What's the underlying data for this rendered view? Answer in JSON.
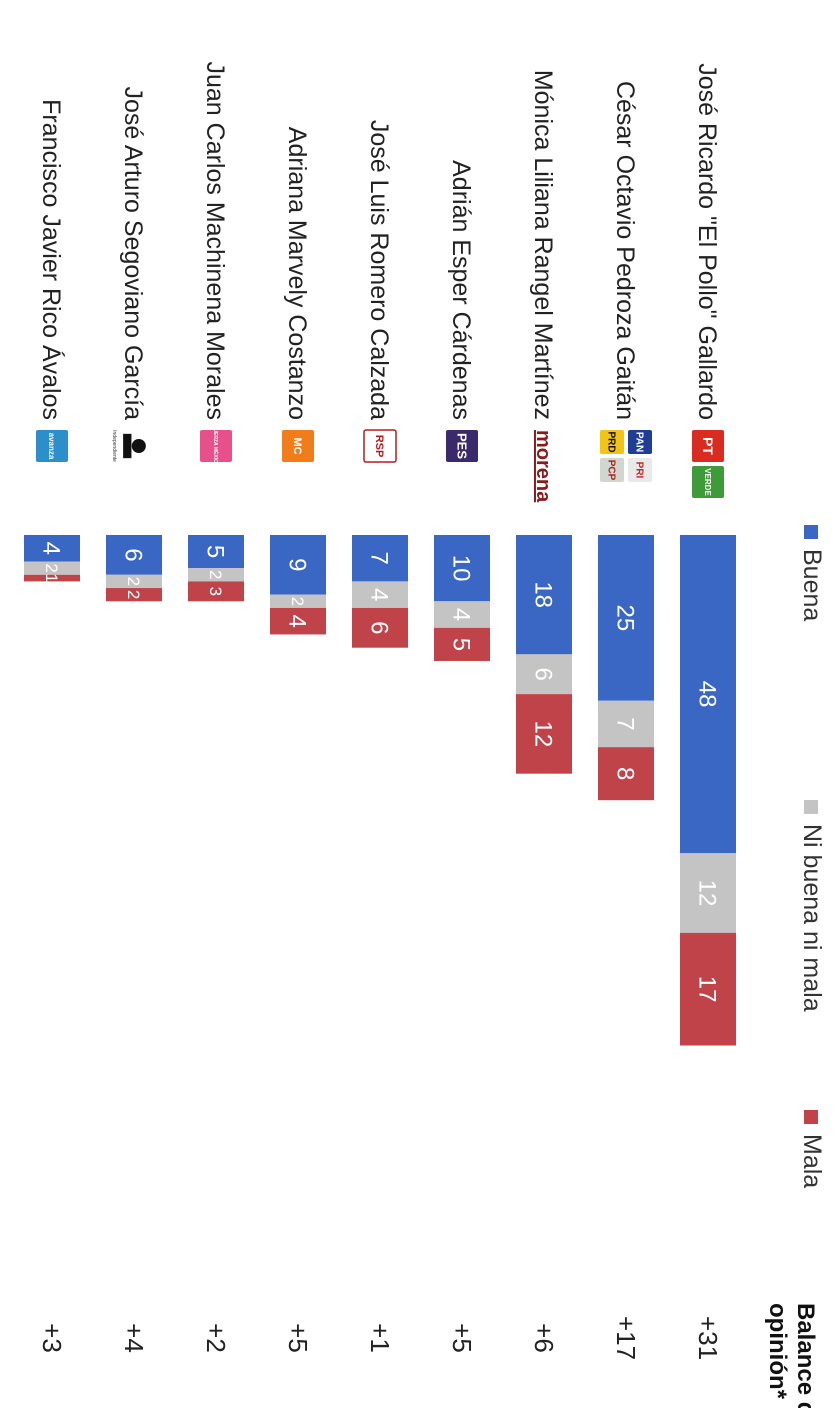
{
  "chart_data": {
    "type": "bar",
    "stacked": true,
    "orientation": "horizontal",
    "legend_position": "top",
    "balance_header": "Balance de opinión*",
    "series": [
      {
        "name": "Buena",
        "color": "#3a66c4"
      },
      {
        "name": "Ni buena ni mala",
        "color": "#c4c4c4"
      },
      {
        "name": "Mala",
        "color": "#c0434a"
      }
    ],
    "rows": [
      {
        "candidate": "José Ricardo \"El Pollo\" Gallardo",
        "parties": [
          "PT",
          "VERDE"
        ],
        "buena": 48,
        "ni": 12,
        "mala": 17,
        "balance": "+31"
      },
      {
        "candidate": "César Octavio Pedroza Gaitán",
        "parties": [
          "PAN",
          "PRI",
          "PRD",
          "PCP"
        ],
        "buena": 25,
        "ni": 7,
        "mala": 8,
        "balance": "+17"
      },
      {
        "candidate": "Mónica Liliana Rangel Martínez",
        "parties": [
          "morena"
        ],
        "buena": 18,
        "ni": 6,
        "mala": 12,
        "balance": "+6"
      },
      {
        "candidate": "Adrián Esper Cárdenas",
        "parties": [
          "PES"
        ],
        "buena": 10,
        "ni": 4,
        "mala": 5,
        "balance": "+5"
      },
      {
        "candidate": "José Luis Romero Calzada",
        "parties": [
          "RSP"
        ],
        "buena": 7,
        "ni": 4,
        "mala": 6,
        "balance": "+1"
      },
      {
        "candidate": "Adriana Marvely Costanzo",
        "parties": [
          "MC"
        ],
        "buena": 9,
        "ni": 2,
        "mala": 4,
        "balance": "+5"
      },
      {
        "candidate": "Juan Carlos Machinena Morales",
        "parties": [
          "FUERZA MÉXICO"
        ],
        "buena": 5,
        "ni": 2,
        "mala": 3,
        "balance": "+2"
      },
      {
        "candidate": "José Arturo Segoviano García",
        "parties": [
          "Independiente"
        ],
        "buena": 6,
        "ni": 2,
        "mala": 2,
        "balance": "+4"
      },
      {
        "candidate": "Francisco Javier Rico Ávalos",
        "parties": [
          "avanza"
        ],
        "buena": 4,
        "ni": 2,
        "mala": 1,
        "balance": "+3"
      }
    ]
  }
}
